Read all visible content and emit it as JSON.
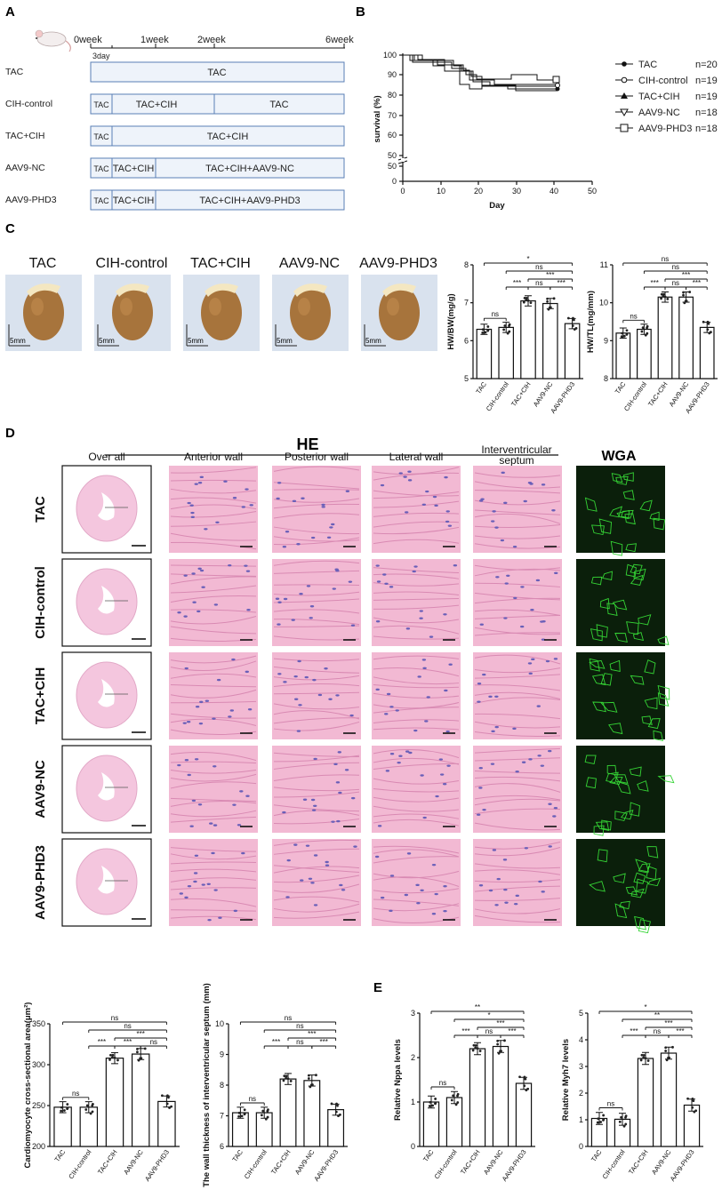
{
  "panels": {
    "a": "A",
    "b": "B",
    "c": "C",
    "d": "D",
    "e": "E"
  },
  "groups": [
    "TAC",
    "CIH-control",
    "TAC+CIH",
    "AAV9-NC",
    "AAV9-PHD3"
  ],
  "timeline": {
    "weeks": [
      "0week",
      "1week",
      "2week",
      "6week"
    ],
    "day_label": "3day",
    "rows": [
      {
        "label": "TAC",
        "segments": [
          "TAC"
        ]
      },
      {
        "label": "CIH-control",
        "segments": [
          "TAC",
          "TAC+CIH",
          "TAC"
        ]
      },
      {
        "label": "TAC+CIH",
        "segments": [
          "TAC",
          "TAC+CIH"
        ]
      },
      {
        "label": "AAV9-NC",
        "segments": [
          "TAC",
          "TAC+CIH",
          "TAC+CIH+AAV9-NC"
        ]
      },
      {
        "label": "AAV9-PHD3",
        "segments": [
          "TAC",
          "TAC+CIH",
          "TAC+CIH+AAV9-PHD3"
        ]
      }
    ]
  },
  "survival": {
    "ylabel": "survival (%)",
    "xlabel": "Day",
    "yticks": [
      "100",
      "90",
      "80",
      "70",
      "60",
      "50",
      "50",
      "0"
    ],
    "xticks": [
      "0",
      "10",
      "20",
      "30",
      "40",
      "50"
    ],
    "legend": [
      {
        "name": "TAC",
        "n": "n=20"
      },
      {
        "name": "CIH-control",
        "n": "n=19"
      },
      {
        "name": "TAC+CIH",
        "n": "n=19"
      },
      {
        "name": "AAV9-NC",
        "n": "n=18"
      },
      {
        "name": "AAV9-PHD3",
        "n": "n=18"
      }
    ]
  },
  "hearts": {
    "titles": [
      "TAC",
      "CIH-control",
      "TAC+CIH",
      "AAV9-NC",
      "AAV9-PHD3"
    ],
    "scale": "5mm"
  },
  "he": {
    "header": "HE",
    "columns": [
      "Over all",
      "Anterior wall",
      "Posterior wall",
      "Lateral wall",
      "Interventricular septum"
    ],
    "wga": "WGA"
  },
  "chart_data": [
    {
      "type": "bar",
      "categories": [
        "TAC",
        "CIH-control",
        "TAC+CIH",
        "AAV9-NC",
        "AAV9-PHD3"
      ],
      "values": [
        6.3,
        6.35,
        7.05,
        6.98,
        6.45
      ],
      "ylabel": "HW/BW(mg/g)",
      "ylim": [
        5,
        8
      ],
      "yticks": [
        "5",
        "6",
        "7",
        "8"
      ],
      "sig": [
        {
          "a": 0,
          "b": 1,
          "t": "ns"
        },
        {
          "a": 1,
          "b": 2,
          "t": "***"
        },
        {
          "a": 2,
          "b": 3,
          "t": "ns"
        },
        {
          "a": 3,
          "b": 4,
          "t": "***"
        },
        {
          "a": 2,
          "b": 4,
          "t": "***"
        },
        {
          "a": 1,
          "b": 4,
          "t": "ns"
        },
        {
          "a": 0,
          "b": 4,
          "t": "*"
        }
      ]
    },
    {
      "type": "bar",
      "categories": [
        "TAC",
        "CIH-control",
        "TAC+CIH",
        "AAV9-NC",
        "AAV9-PHD3"
      ],
      "values": [
        9.2,
        9.3,
        10.15,
        10.15,
        9.35
      ],
      "ylabel": "HW/TL(mg/mm)",
      "ylim": [
        8,
        11
      ],
      "yticks": [
        "8",
        "9",
        "10",
        "11"
      ],
      "sig": [
        {
          "a": 0,
          "b": 1,
          "t": "ns"
        },
        {
          "a": 1,
          "b": 2,
          "t": "***"
        },
        {
          "a": 2,
          "b": 3,
          "t": "ns"
        },
        {
          "a": 3,
          "b": 4,
          "t": "***"
        },
        {
          "a": 2,
          "b": 4,
          "t": "***"
        },
        {
          "a": 1,
          "b": 4,
          "t": "ns"
        },
        {
          "a": 0,
          "b": 4,
          "t": "ns"
        }
      ]
    },
    {
      "type": "bar",
      "categories": [
        "TAC",
        "CIH-control",
        "TAC+CIH",
        "AAV9-NC",
        "AAV9-PHD3"
      ],
      "values": [
        248,
        248,
        308,
        313,
        255
      ],
      "ylabel": "Cardiomyocyte cross-sectional area(μm²)",
      "ylim": [
        200,
        350
      ],
      "yticks": [
        "200",
        "250",
        "300",
        "350"
      ],
      "sig": [
        {
          "a": 0,
          "b": 1,
          "t": "ns"
        },
        {
          "a": 1,
          "b": 2,
          "t": "***"
        },
        {
          "a": 2,
          "b": 3,
          "t": "***"
        },
        {
          "a": 3,
          "b": 4,
          "t": "ns"
        },
        {
          "a": 2,
          "b": 4,
          "t": "***"
        },
        {
          "a": 1,
          "b": 4,
          "t": "ns"
        },
        {
          "a": 0,
          "b": 4,
          "t": "ns"
        }
      ]
    },
    {
      "type": "bar",
      "categories": [
        "TAC",
        "CIH-control",
        "TAC+CIH",
        "AAV9-NC",
        "AAV9-PHD3"
      ],
      "values": [
        7.1,
        7.1,
        8.2,
        8.15,
        7.2
      ],
      "ylabel": "The wall thickness of interventricular septum (mm)",
      "ylim": [
        6,
        10
      ],
      "yticks": [
        "6",
        "7",
        "8",
        "9",
        "10"
      ],
      "sig": [
        {
          "a": 0,
          "b": 1,
          "t": "ns"
        },
        {
          "a": 1,
          "b": 2,
          "t": "***"
        },
        {
          "a": 2,
          "b": 3,
          "t": "ns"
        },
        {
          "a": 3,
          "b": 4,
          "t": "***"
        },
        {
          "a": 2,
          "b": 4,
          "t": "***"
        },
        {
          "a": 1,
          "b": 4,
          "t": "ns"
        },
        {
          "a": 0,
          "b": 4,
          "t": "ns"
        }
      ]
    },
    {
      "type": "bar",
      "categories": [
        "TAC",
        "CIH-control",
        "TAC+CIH",
        "AAV9-NC",
        "AAV9-PHD3"
      ],
      "values": [
        1.0,
        1.1,
        2.2,
        2.25,
        1.42
      ],
      "ylabel": "Relative Nppa levels",
      "ylim": [
        0,
        3
      ],
      "yticks": [
        "0",
        "1",
        "2",
        "3"
      ],
      "sig": [
        {
          "a": 0,
          "b": 1,
          "t": "ns"
        },
        {
          "a": 1,
          "b": 2,
          "t": "***"
        },
        {
          "a": 2,
          "b": 3,
          "t": "ns"
        },
        {
          "a": 3,
          "b": 4,
          "t": "***"
        },
        {
          "a": 2,
          "b": 4,
          "t": "***"
        },
        {
          "a": 1,
          "b": 4,
          "t": "*"
        },
        {
          "a": 0,
          "b": 4,
          "t": "**"
        }
      ]
    },
    {
      "type": "bar",
      "categories": [
        "TAC",
        "CIH-control",
        "TAC+CIH",
        "AAV9-NC",
        "AAV9-PHD3"
      ],
      "values": [
        1.05,
        1.02,
        3.3,
        3.5,
        1.55
      ],
      "ylabel": "Relative Myh7 levels",
      "ylim": [
        0,
        5
      ],
      "yticks": [
        "0",
        "1",
        "2",
        "3",
        "4",
        "5"
      ],
      "sig": [
        {
          "a": 0,
          "b": 1,
          "t": "ns"
        },
        {
          "a": 1,
          "b": 2,
          "t": "***"
        },
        {
          "a": 2,
          "b": 3,
          "t": "ns"
        },
        {
          "a": 3,
          "b": 4,
          "t": "***"
        },
        {
          "a": 2,
          "b": 4,
          "t": "***"
        },
        {
          "a": 1,
          "b": 4,
          "t": "**"
        },
        {
          "a": 0,
          "b": 4,
          "t": "*"
        }
      ]
    }
  ]
}
